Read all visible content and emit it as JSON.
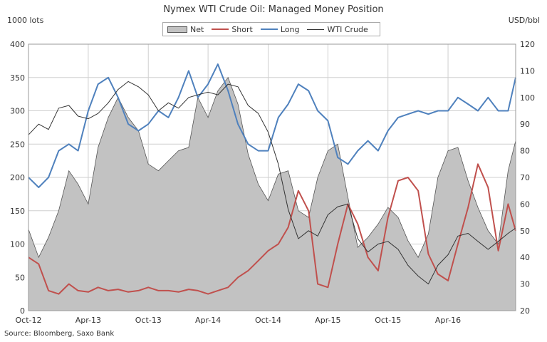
{
  "title": "Nymex  WTI Crude Oil: Managed Money Position",
  "source": "Source: Bloomberg, Saxo Bank",
  "chart_data": {
    "type": "area",
    "title": "Nymex  WTI Crude Oil: Managed Money Position",
    "ylabel": "1000 lots",
    "y2label": "USD/bbl",
    "ylim": [
      0,
      400
    ],
    "y2lim": [
      20,
      120
    ],
    "yticks": [
      0,
      50,
      100,
      150,
      200,
      250,
      300,
      350,
      400
    ],
    "y2ticks": [
      20,
      30,
      40,
      50,
      60,
      70,
      80,
      90,
      100,
      110,
      120
    ],
    "xlim": [
      "2012-10-01",
      "2016-10-24"
    ],
    "xticks": [
      {
        "date": "2012-10-01",
        "label": "Oct-12"
      },
      {
        "date": "2013-04-01",
        "label": "Apr-13"
      },
      {
        "date": "2013-10-01",
        "label": "Oct-13"
      },
      {
        "date": "2014-04-01",
        "label": "Apr-14"
      },
      {
        "date": "2014-10-01",
        "label": "Oct-14"
      },
      {
        "date": "2015-04-01",
        "label": "Apr-15"
      },
      {
        "date": "2015-10-01",
        "label": "Oct-15"
      },
      {
        "date": "2016-04-01",
        "label": "Apr-16"
      }
    ],
    "grid": true,
    "legend_position": "top-center",
    "x": [
      "2012-10-01",
      "2012-11-01",
      "2012-12-01",
      "2013-01-01",
      "2013-02-01",
      "2013-03-01",
      "2013-04-01",
      "2013-05-01",
      "2013-06-01",
      "2013-07-01",
      "2013-08-01",
      "2013-09-01",
      "2013-10-01",
      "2013-11-01",
      "2013-12-01",
      "2014-01-01",
      "2014-02-01",
      "2014-03-01",
      "2014-04-01",
      "2014-05-01",
      "2014-06-01",
      "2014-07-01",
      "2014-08-01",
      "2014-09-01",
      "2014-10-01",
      "2014-11-01",
      "2014-12-01",
      "2015-01-01",
      "2015-02-01",
      "2015-03-01",
      "2015-04-01",
      "2015-05-01",
      "2015-06-01",
      "2015-07-01",
      "2015-08-01",
      "2015-09-01",
      "2015-10-01",
      "2015-11-01",
      "2015-12-01",
      "2016-01-01",
      "2016-02-01",
      "2016-03-01",
      "2016-04-01",
      "2016-05-01",
      "2016-06-01",
      "2016-07-01",
      "2016-08-01",
      "2016-09-01",
      "2016-10-01",
      "2016-10-24"
    ],
    "series": [
      {
        "name": "Net",
        "style": "area",
        "axis": "left",
        "color": "#c2c2c2",
        "values": [
          122,
          80,
          110,
          150,
          210,
          190,
          160,
          245,
          290,
          320,
          290,
          270,
          220,
          210,
          225,
          240,
          245,
          320,
          290,
          330,
          350,
          310,
          235,
          190,
          165,
          205,
          210,
          150,
          140,
          200,
          240,
          250,
          170,
          95,
          110,
          130,
          155,
          140,
          105,
          80,
          115,
          200,
          240,
          245,
          195,
          155,
          120,
          100,
          210,
          255
        ]
      },
      {
        "name": "Short",
        "style": "line",
        "axis": "left",
        "color": "#c0504d",
        "values": [
          80,
          70,
          30,
          25,
          40,
          30,
          28,
          35,
          30,
          32,
          28,
          30,
          35,
          30,
          30,
          28,
          32,
          30,
          25,
          30,
          35,
          50,
          60,
          75,
          90,
          100,
          125,
          180,
          150,
          40,
          35,
          100,
          160,
          130,
          80,
          60,
          140,
          195,
          200,
          180,
          85,
          55,
          45,
          100,
          155,
          220,
          185,
          90,
          160,
          120
        ]
      },
      {
        "name": "Long",
        "style": "line",
        "axis": "left",
        "color": "#4f81bd",
        "values": [
          200,
          185,
          200,
          240,
          250,
          240,
          300,
          340,
          350,
          320,
          280,
          270,
          280,
          300,
          290,
          320,
          360,
          320,
          340,
          370,
          330,
          280,
          250,
          240,
          240,
          290,
          310,
          340,
          330,
          300,
          285,
          230,
          220,
          240,
          255,
          240,
          270,
          290,
          295,
          300,
          295,
          300,
          300,
          320,
          310,
          300,
          320,
          300,
          300,
          350
        ]
      },
      {
        "name": "WTI Crude",
        "style": "line",
        "axis": "right",
        "color": "#333333",
        "values": [
          86,
          90,
          88,
          96,
          97,
          93,
          92,
          94,
          98,
          103,
          106,
          104,
          101,
          95,
          98,
          96,
          100,
          101,
          102,
          101,
          105,
          104,
          97,
          94,
          87,
          75,
          58,
          47,
          50,
          48,
          56,
          59,
          60,
          47,
          42,
          45,
          46,
          43,
          37,
          33,
          30,
          37,
          41,
          48,
          49,
          46,
          43,
          46,
          49,
          51
        ]
      }
    ]
  }
}
